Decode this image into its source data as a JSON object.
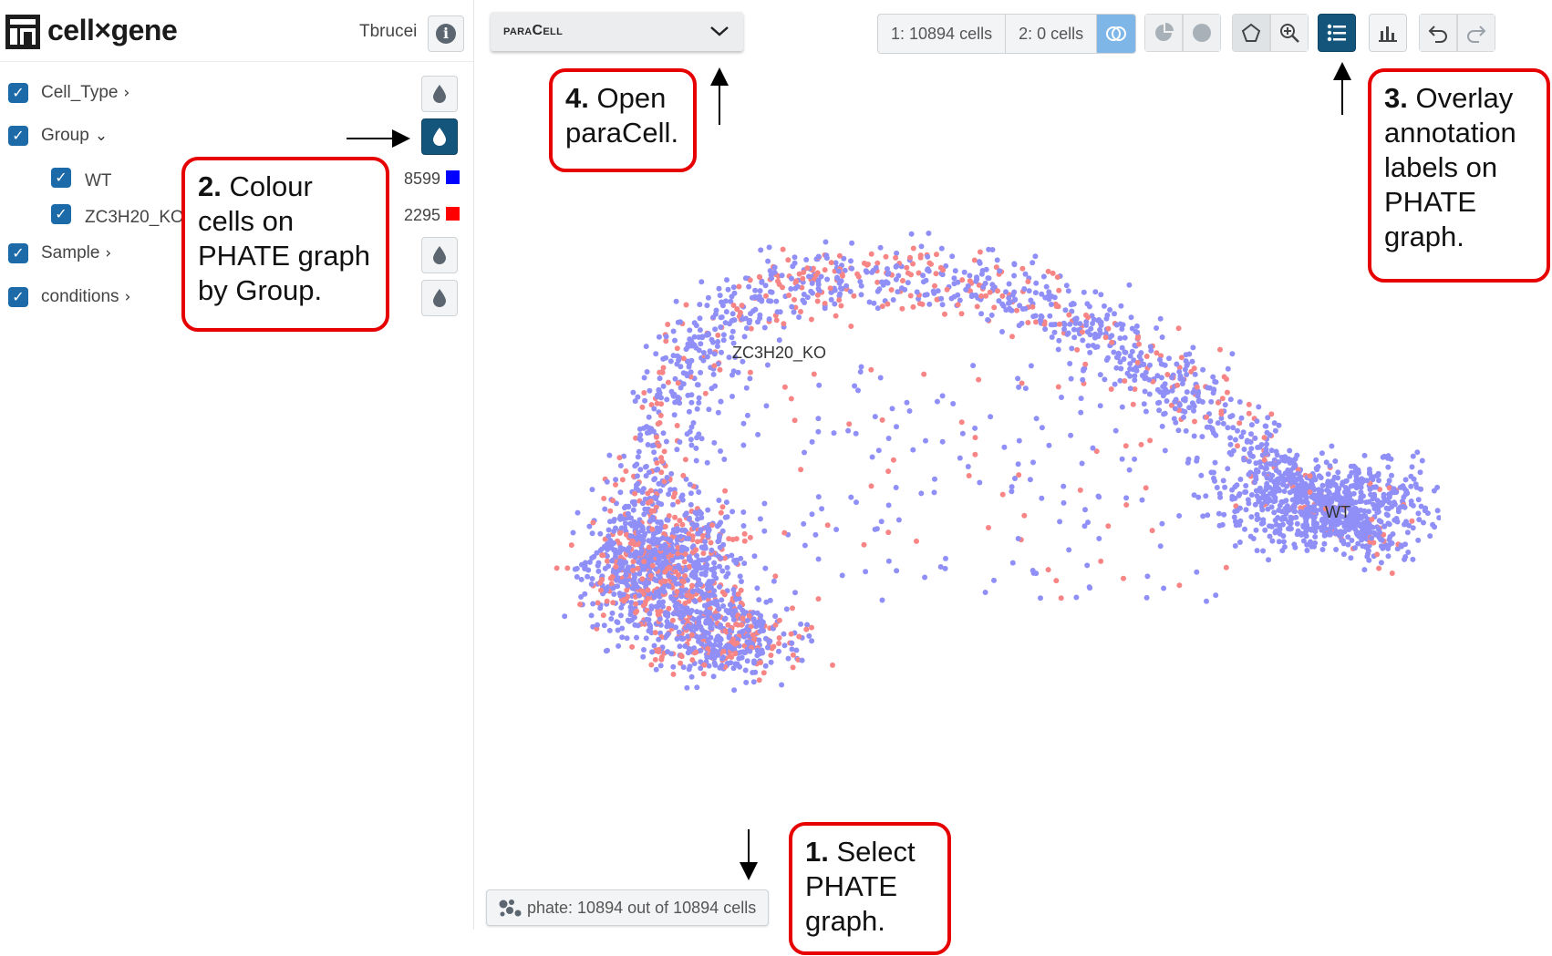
{
  "app": {
    "title": "cell×gene",
    "dataset": "Tbrucei"
  },
  "sidebar": {
    "categories": [
      {
        "label": "Cell_Type",
        "expanded": false
      },
      {
        "label": "Group",
        "expanded": true,
        "values": [
          {
            "label": "WT",
            "count": "8599",
            "color": "#0000ff"
          },
          {
            "label": "ZC3H20_KO",
            "count": "2295",
            "color": "#ff0000"
          }
        ]
      },
      {
        "label": "Sample",
        "expanded": false
      },
      {
        "label": "conditions",
        "expanded": false
      }
    ]
  },
  "topbar": {
    "paracell_label": "paraCell",
    "cellcount_1": "1: 10894 cells",
    "cellcount_2": "2: 0 cells"
  },
  "graph": {
    "labels": {
      "ko": "ZC3H20_KO",
      "wt": "WT"
    },
    "colors": {
      "wt": "#8f8ff7",
      "ko": "#f88585"
    }
  },
  "footer": {
    "embedding_label": "phate: 10894 out of 10894 cells"
  },
  "annotations": {
    "step1": {
      "num": "1.",
      "text": "Select PHATE graph."
    },
    "step2": {
      "num": "2.",
      "text": "Colour cells on PHATE graph by Group."
    },
    "step3": {
      "num": "3.",
      "text": "Overlay annotation labels on PHATE graph."
    },
    "step4": {
      "num": "4.",
      "text": "Open paraCell."
    }
  }
}
